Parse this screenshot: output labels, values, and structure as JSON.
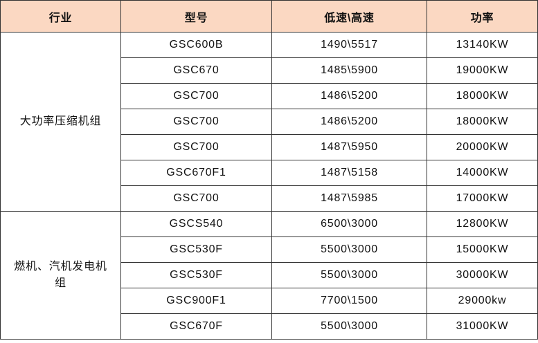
{
  "header": {
    "industry": "行业",
    "model": "型号",
    "speed": "低速\\高速",
    "power": "功率"
  },
  "header_color": "#fbd8c2",
  "groups": [
    {
      "industry": "大功率压缩机组",
      "rows": [
        {
          "model": "GSC600B",
          "speed": "1490\\5517",
          "power": "13140KW"
        },
        {
          "model": "GSC670",
          "speed": "1485\\5900",
          "power": "19000KW"
        },
        {
          "model": "GSC700",
          "speed": "1486\\5200",
          "power": "18000KW"
        },
        {
          "model": "GSC700",
          "speed": "1486\\5200",
          "power": "18000KW"
        },
        {
          "model": "GSC700",
          "speed": "1487\\5950",
          "power": "20000KW"
        },
        {
          "model": "GSC670F1",
          "speed": "1487\\5158",
          "power": "14000KW"
        },
        {
          "model": "GSC700",
          "speed": "1487\\5985",
          "power": "17000KW"
        }
      ]
    },
    {
      "industry": "燃机、汽机发电机组",
      "rows": [
        {
          "model": "GSCS540",
          "speed": "6500\\3000",
          "power": "12800KW"
        },
        {
          "model": "GSC530F",
          "speed": "5500\\3000",
          "power": "15000KW"
        },
        {
          "model": "GSC530F",
          "speed": "5500\\3000",
          "power": "30000KW"
        },
        {
          "model": "GSC900F1",
          "speed": "7700\\1500",
          "power": "29000kw"
        },
        {
          "model": "GSC670F",
          "speed": "5500\\3000",
          "power": "31000KW"
        }
      ]
    }
  ]
}
